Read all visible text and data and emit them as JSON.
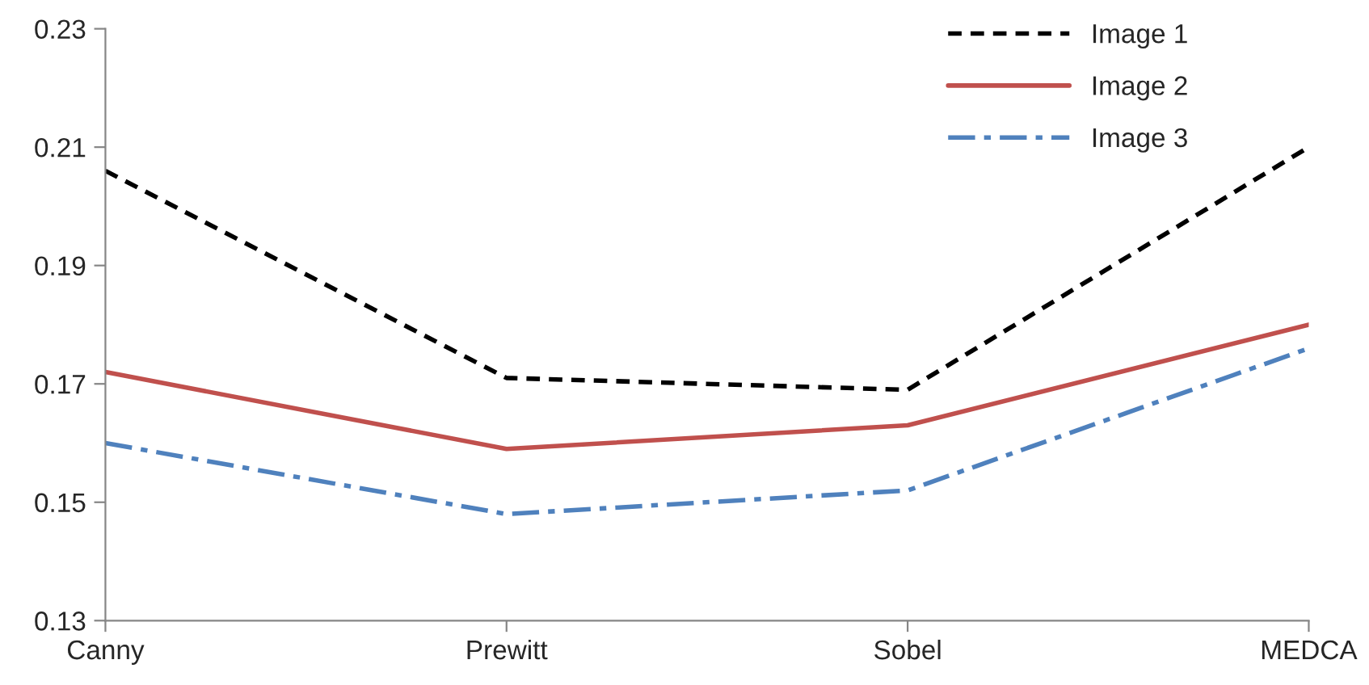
{
  "chart_data": {
    "type": "line",
    "categories": [
      "Canny",
      "Prewitt",
      "Sobel",
      "MEDCA"
    ],
    "series": [
      {
        "name": "Image 1",
        "color": "#000000",
        "line_style": "dashed",
        "values": [
          0.206,
          0.171,
          0.169,
          0.21
        ]
      },
      {
        "name": "Image 2",
        "color": "#c0504d",
        "line_style": "solid",
        "values": [
          0.172,
          0.159,
          0.163,
          0.18
        ]
      },
      {
        "name": "Image 3",
        "color": "#4f81bd",
        "line_style": "dashdot",
        "values": [
          0.16,
          0.148,
          0.152,
          0.176
        ]
      }
    ],
    "ylim": [
      0.13,
      0.23
    ],
    "yticks": [
      {
        "value": 0.13,
        "label": "0.13"
      },
      {
        "value": 0.15,
        "label": "0.15"
      },
      {
        "value": 0.17,
        "label": "0.17"
      },
      {
        "value": 0.19,
        "label": "0.19"
      },
      {
        "value": 0.21,
        "label": "0.21"
      },
      {
        "value": 0.23,
        "label": "0.23"
      }
    ],
    "grid": false,
    "legend": "top right",
    "marker": "none"
  }
}
